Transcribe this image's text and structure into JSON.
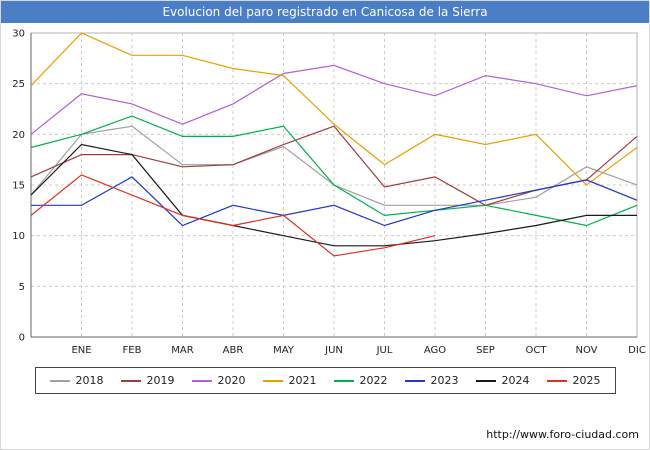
{
  "title": "Evolucion del paro registrado en Canicosa de la Sierra",
  "footer": {
    "url": "http://www.foro-ciudad.com"
  },
  "colors": {
    "titlebar": "#4a7ec6",
    "grid": "#cccccc",
    "plot_border": "#b4b4b4",
    "axis": "#666666"
  },
  "chart_data": {
    "type": "line",
    "title": "Evolucion del paro registrado en Canicosa de la Sierra",
    "xlabel": "",
    "ylabel": "",
    "ylim": [
      0,
      30
    ],
    "yticks": [
      0,
      5,
      10,
      15,
      20,
      25,
      30
    ],
    "grid": true,
    "legend_position": "bottom",
    "categories": [
      "ENE",
      "FEB",
      "MAR",
      "ABR",
      "MAY",
      "JUN",
      "JUL",
      "AGO",
      "SEP",
      "OCT",
      "NOV",
      "DIC"
    ],
    "note_prev_point": "each series starts with a lead-in value at the left axis before ENE",
    "series": [
      {
        "name": "2018",
        "color": "#a0a0a0",
        "prev": 14,
        "values": [
          20,
          20.8,
          17,
          17,
          18.8,
          15,
          13,
          13,
          13,
          13.8,
          16.8,
          15
        ]
      },
      {
        "name": "2019",
        "color": "#a03c3c",
        "prev": 15.8,
        "values": [
          18,
          18,
          16.8,
          17,
          19,
          20.8,
          14.8,
          15.8,
          13,
          14.5,
          15.5,
          19.8
        ]
      },
      {
        "name": "2020",
        "color": "#b35fd6",
        "prev": 20,
        "values": [
          24,
          23,
          21,
          23,
          26,
          26.8,
          25,
          23.8,
          25.8,
          25,
          23.8,
          24.8
        ]
      },
      {
        "name": "2021",
        "color": "#e8a000",
        "prev": 24.8,
        "values": [
          30,
          27.8,
          27.8,
          26.5,
          25.8,
          21,
          17,
          20,
          19,
          20,
          15,
          18.7
        ]
      },
      {
        "name": "2022",
        "color": "#00b050",
        "prev": 18.7,
        "values": [
          20,
          21.8,
          19.8,
          19.8,
          20.8,
          15,
          12,
          12.5,
          13,
          12,
          11,
          13
        ]
      },
      {
        "name": "2023",
        "color": "#2238c8",
        "prev": 13,
        "values": [
          13,
          15.8,
          11,
          13,
          12,
          13,
          11,
          12.5,
          13.5,
          14.5,
          15.5,
          13.5
        ]
      },
      {
        "name": "2024",
        "color": "#1a1a1a",
        "prev": 14,
        "values": [
          19,
          18,
          12,
          11,
          10,
          9,
          9,
          9.5,
          10.2,
          11,
          12,
          12
        ]
      },
      {
        "name": "2025",
        "color": "#e03020",
        "prev": 12,
        "values": [
          16,
          14,
          12,
          11,
          12,
          8,
          8.8,
          10,
          null,
          null,
          null,
          null
        ]
      }
    ]
  }
}
